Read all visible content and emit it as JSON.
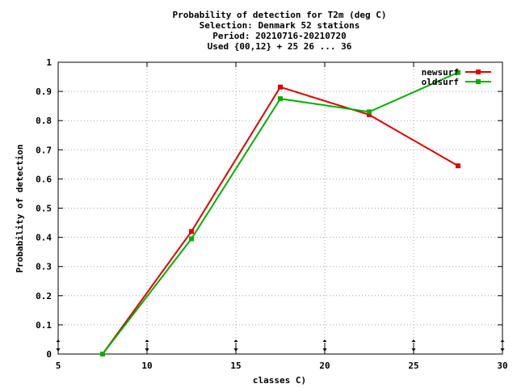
{
  "chart_data": {
    "type": "line",
    "title_lines": [
      "Probability of detection  for T2m (deg C)",
      "Selection: Denmark     52 stations",
      "Period: 20210716-20210720",
      "Used {00,12} + 25 26 ... 36"
    ],
    "xlabel": "classes C)",
    "ylabel": "Probability of detection",
    "xlim": [
      5,
      30
    ],
    "ylim": [
      0,
      1
    ],
    "xticks": [
      "5",
      "10",
      "15",
      "20",
      "25",
      "30"
    ],
    "yticks": [
      "0",
      "0.1",
      "0.2",
      "0.3",
      "0.4",
      "0.5",
      "0.6",
      "0.7",
      "0.8",
      "0.9",
      "1"
    ],
    "grid": true,
    "legend_position": "top-right",
    "series": [
      {
        "name": "newsurf",
        "color": "#e00000",
        "x": [
          7.5,
          12.5,
          17.5,
          22.5,
          27.5
        ],
        "values": [
          0.0,
          0.42,
          0.915,
          0.82,
          0.645
        ]
      },
      {
        "name": "oldsurf",
        "color": "#00b000",
        "x": [
          7.5,
          12.5,
          17.5,
          22.5,
          27.5
        ],
        "values": [
          0.0,
          0.395,
          0.875,
          0.83,
          0.965
        ]
      }
    ],
    "bottom_markers_x": [
      5,
      10,
      15,
      20,
      25,
      30
    ]
  }
}
